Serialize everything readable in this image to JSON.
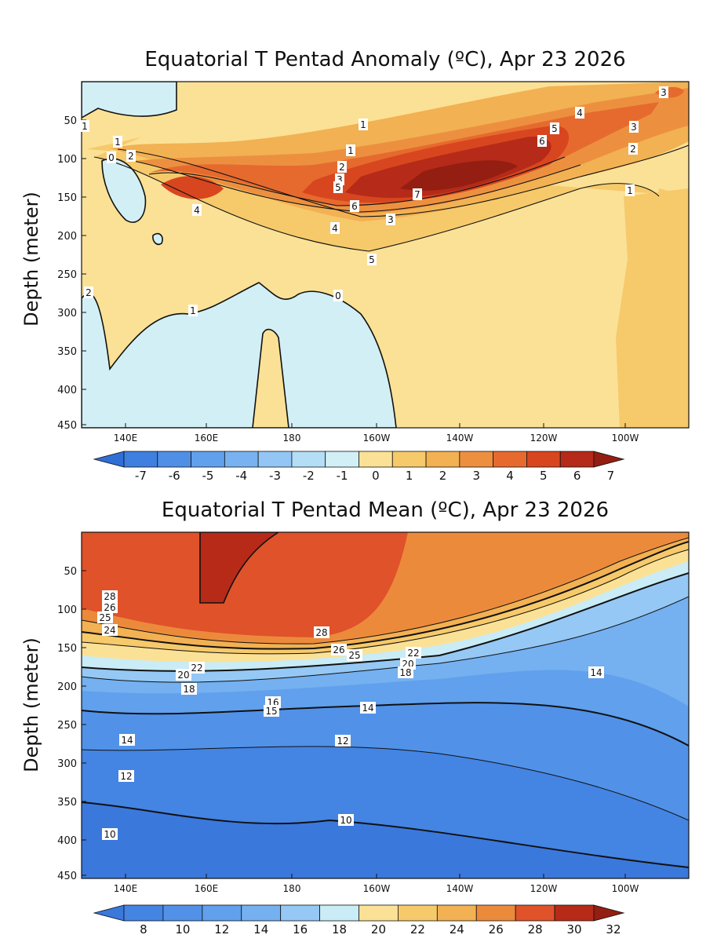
{
  "chart_data": [
    {
      "type": "heatmap",
      "title": "Equatorial T Pentad Anomaly (ºC), Apr 23 2026",
      "ylabel": "Depth (meter)",
      "xlabel": "",
      "x_ticks": [
        "140E",
        "160E",
        "180",
        "160W",
        "140W",
        "120W",
        "100W"
      ],
      "y_ticks": [
        "50",
        "100",
        "150",
        "200",
        "250",
        "300",
        "350",
        "400",
        "450"
      ],
      "ylim": [
        0,
        450
      ],
      "x_range": [
        "130E",
        "85W"
      ],
      "y_inverted": true,
      "colorbar_ticks": [
        "-7",
        "-6",
        "-5",
        "-4",
        "-3",
        "-2",
        "-1",
        "0",
        "1",
        "2",
        "3",
        "4",
        "5",
        "6",
        "7"
      ],
      "colorbar_colors": [
        "#2f6fd6",
        "#3f7fe0",
        "#4f8fe6",
        "#61a0ec",
        "#78b2f0",
        "#93c6f4",
        "#b4def5",
        "#d2eff5",
        "#fbe196",
        "#f6c96b",
        "#f2b152",
        "#ec9040",
        "#e66a2e",
        "#d8461f",
        "#b52a18",
        "#941e12"
      ],
      "contour_labels": [
        "1",
        "1",
        "1",
        "0",
        "2",
        "1",
        "2",
        "3",
        "4",
        "5",
        "6",
        "4",
        "3",
        "2",
        "1",
        "3",
        "4",
        "5",
        "7",
        "6",
        "5",
        "3",
        "2",
        "1",
        "0",
        "0",
        "0"
      ],
      "series": [
        {
          "name": "",
          "type": "peak",
          "x": "145W",
          "depth": 130,
          "value": 7
        },
        {
          "name": "",
          "type": "peak",
          "x": "163E",
          "depth": 140,
          "value": 5
        },
        {
          "name": "",
          "type": "peak",
          "x": "92W",
          "depth": 25,
          "value": 4
        }
      ]
    },
    {
      "type": "heatmap",
      "title": "Equatorial T Pentad Mean (ºC), Apr 23 2026",
      "ylabel": "Depth (meter)",
      "xlabel": "",
      "x_ticks": [
        "140E",
        "160E",
        "180",
        "160W",
        "140W",
        "120W",
        "100W"
      ],
      "y_ticks": [
        "50",
        "100",
        "150",
        "200",
        "250",
        "300",
        "350",
        "400",
        "450"
      ],
      "ylim": [
        0,
        450
      ],
      "x_range": [
        "130E",
        "85W"
      ],
      "y_inverted": true,
      "colorbar_ticks": [
        "8",
        "10",
        "12",
        "14",
        "16",
        "18",
        "20",
        "22",
        "24",
        "26",
        "28",
        "30",
        "32"
      ],
      "colorbar_colors": [
        "#3a78dc",
        "#4484e2",
        "#5192e8",
        "#60a0ec",
        "#75b0f0",
        "#95c8f4",
        "#c9ecf6",
        "#fbe196",
        "#f6c96b",
        "#f2b152",
        "#ec8a3c",
        "#e0522a",
        "#b82a18",
        "#941e12"
      ],
      "contour_labels": [
        "28",
        "26",
        "25",
        "24",
        "28",
        "26",
        "25",
        "22",
        "20",
        "18",
        "20",
        "22",
        "18",
        "14",
        "16",
        "15",
        "14",
        "14",
        "12",
        "12",
        "10",
        "10"
      ],
      "series": [
        {
          "name": "",
          "type": "isotherm",
          "value": 20,
          "depth_west": 180,
          "depth_east": 30
        },
        {
          "name": "",
          "type": "isotherm",
          "value": 14,
          "depth_west": 270,
          "depth_east": 190
        },
        {
          "name": "",
          "type": "isotherm",
          "value": 10,
          "depth_west": 395,
          "depth_east": 460
        }
      ]
    }
  ]
}
